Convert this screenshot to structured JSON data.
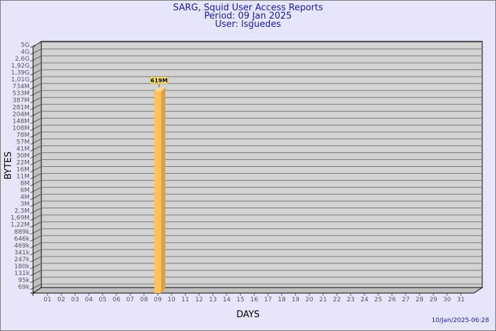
{
  "title": "SARG, Squid User Access Reports",
  "period": "Period: 09 Jan 2025",
  "user": "User: lsguedes",
  "timestamp": "10/Jan/2025-06:28",
  "chart_data": {
    "type": "bar",
    "title": "SARG, Squid User Access Reports",
    "xlabel": "DAYS",
    "ylabel": "BYTES",
    "y_scale": "log",
    "y_ticks": [
      "5G",
      "4G",
      "2,6G",
      "1,92G",
      "1,39G",
      "1,01G",
      "734M",
      "533M",
      "387M",
      "281M",
      "204M",
      "148M",
      "108M",
      "78M",
      "57M",
      "41M",
      "30M",
      "22M",
      "16M",
      "11M",
      "8M",
      "6M",
      "4M",
      "3M",
      "2,3M",
      "1,69M",
      "1,22M",
      "889k",
      "646k",
      "469k",
      "341k",
      "247k",
      "180k",
      "131k",
      "95k",
      "69k"
    ],
    "categories": [
      "01",
      "02",
      "03",
      "04",
      "05",
      "06",
      "07",
      "08",
      "09",
      "10",
      "11",
      "12",
      "13",
      "14",
      "15",
      "16",
      "17",
      "18",
      "19",
      "20",
      "21",
      "22",
      "23",
      "24",
      "25",
      "26",
      "27",
      "28",
      "29",
      "30",
      "31"
    ],
    "values": [
      null,
      null,
      null,
      null,
      null,
      null,
      null,
      null,
      619000000,
      null,
      null,
      null,
      null,
      null,
      null,
      null,
      null,
      null,
      null,
      null,
      null,
      null,
      null,
      null,
      null,
      null,
      null,
      null,
      null,
      null,
      null
    ],
    "data_labels": {
      "09": "619M"
    },
    "bar_color": "#ffc060",
    "grid": true
  }
}
